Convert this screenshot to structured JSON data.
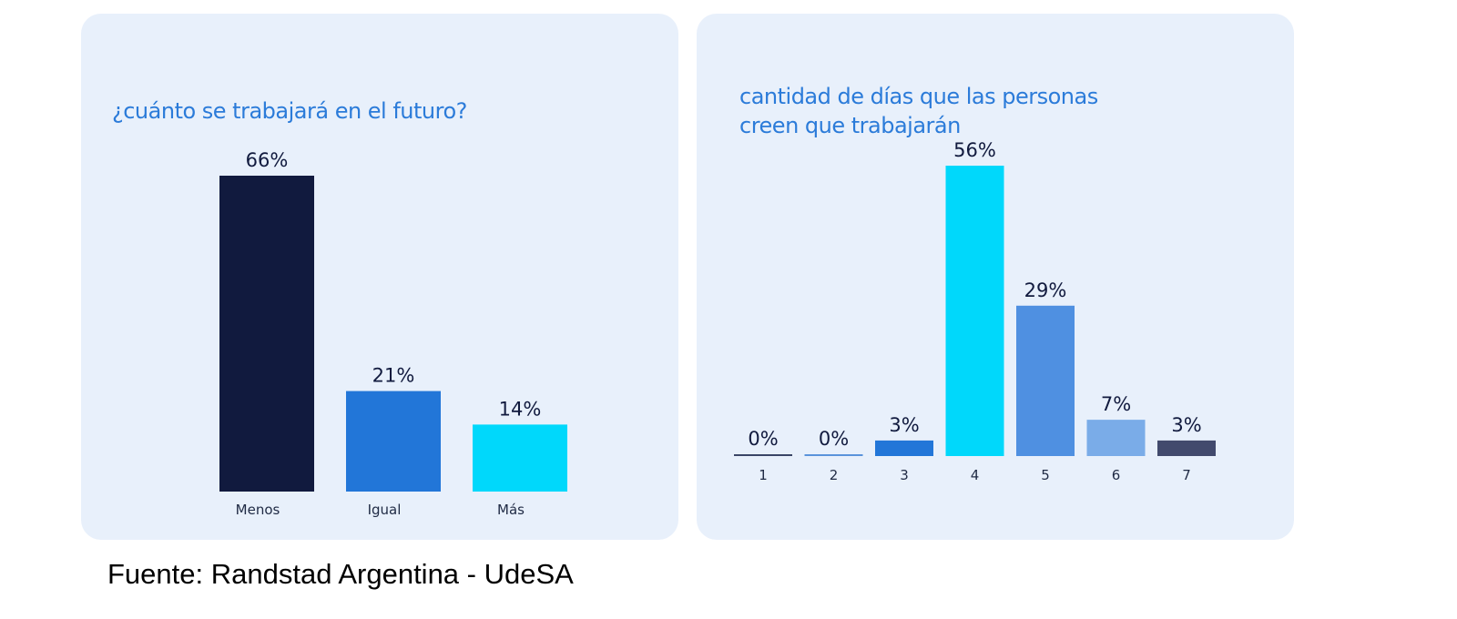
{
  "chart_data": [
    {
      "type": "bar",
      "title": "¿cuánto se trabajará en el futuro?",
      "categories": [
        "Menos",
        "Igual",
        "Más"
      ],
      "values": [
        66,
        21,
        14
      ],
      "value_labels": [
        "66%",
        "21%",
        "14%"
      ],
      "colors": [
        "#111a3e",
        "#2276d8",
        "#00d8fb"
      ],
      "ylim": [
        0,
        66
      ],
      "xlabel": "",
      "ylabel": "",
      "grid": false,
      "legend": "none"
    },
    {
      "type": "bar",
      "title": "cantidad de días que las personas creen que trabajarán",
      "categories": [
        "1",
        "2",
        "3",
        "4",
        "5",
        "6",
        "7"
      ],
      "values": [
        0,
        0,
        3,
        56,
        29,
        7,
        3
      ],
      "value_labels": [
        "0%",
        "0%",
        "3%",
        "56%",
        "29%",
        "7%",
        "3%"
      ],
      "colors": [
        "#3a4566",
        "#5a93db",
        "#2276d8",
        "#00d8fb",
        "#4f90e1",
        "#7aace8",
        "#424a6d"
      ],
      "ylim": [
        0,
        56
      ],
      "xlabel": "",
      "ylabel": "",
      "grid": false,
      "legend": "none"
    }
  ],
  "footer": {
    "source": "Fuente: Randstad Argentina - UdeSA"
  }
}
